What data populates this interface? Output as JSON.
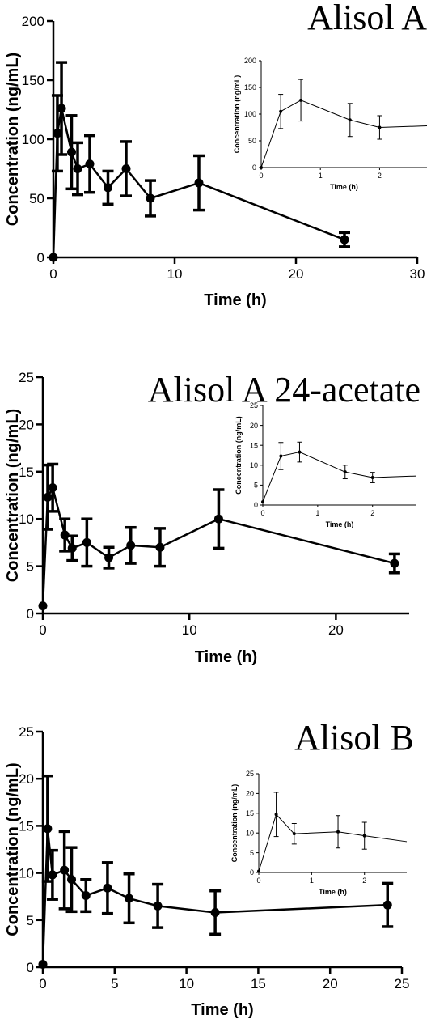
{
  "chart_data": [
    {
      "type": "line",
      "title": "Alisol A",
      "xlabel": "Time (h)",
      "ylabel": "Concentration (ng/mL)",
      "xlim": [
        0,
        30
      ],
      "ylim": [
        0,
        200
      ],
      "xticks": [
        0,
        10,
        20,
        30
      ],
      "yticks": [
        0,
        50,
        100,
        150,
        200
      ],
      "series": [
        {
          "x": [
            0,
            0.33,
            0.67,
            1.5,
            2,
            3,
            4.5,
            6,
            8,
            12,
            24
          ],
          "y": [
            0,
            105,
            126,
            89,
            75,
            79,
            59,
            75,
            50,
            63,
            15
          ],
          "err": [
            0,
            32,
            39,
            31,
            22,
            24,
            14,
            23,
            15,
            23,
            6
          ]
        }
      ],
      "inset": {
        "xlabel": "Time (h)",
        "ylabel": "Concentration (ng/mL)",
        "xlim": [
          0,
          2.8
        ],
        "ylim": [
          0,
          200
        ],
        "xticks": [
          0,
          1,
          2
        ],
        "yticks": [
          0,
          50,
          100,
          150,
          200
        ],
        "series": [
          {
            "x": [
              0,
              0.33,
              0.67,
              1.5,
              2,
              2.8
            ],
            "y": [
              0,
              105,
              126,
              89,
              75,
              78
            ],
            "err": [
              0,
              32,
              39,
              31,
              22,
              null
            ]
          }
        ]
      }
    },
    {
      "type": "line",
      "title": "Alisol A 24-acetate",
      "xlabel": "Time (h)",
      "ylabel": "Concentration (ng/mL)",
      "xlim": [
        0,
        25
      ],
      "ylim": [
        0,
        25
      ],
      "xticks": [
        0,
        10,
        20
      ],
      "yticks": [
        0,
        5,
        10,
        15,
        20,
        25
      ],
      "series": [
        {
          "x": [
            0,
            0.33,
            0.67,
            1.5,
            2,
            3,
            4.5,
            6,
            8,
            12,
            24
          ],
          "y": [
            0.8,
            12.3,
            13.3,
            8.3,
            6.9,
            7.5,
            5.9,
            7.2,
            7.0,
            10.0,
            5.3
          ],
          "err": [
            0,
            3.4,
            2.5,
            1.7,
            1.3,
            2.5,
            1.1,
            1.9,
            2.0,
            3.1,
            1.0
          ]
        }
      ],
      "inset": {
        "xlabel": "Time (h)",
        "ylabel": "Concentration (ng/mL)",
        "xlim": [
          0,
          2.8
        ],
        "ylim": [
          0,
          25
        ],
        "xticks": [
          0,
          1,
          2
        ],
        "yticks": [
          0,
          5,
          10,
          15,
          20,
          25
        ],
        "series": [
          {
            "x": [
              0,
              0.33,
              0.67,
              1.5,
              2,
              2.8
            ],
            "y": [
              0.8,
              12.3,
              13.3,
              8.3,
              6.9,
              7.3
            ],
            "err": [
              0,
              3.4,
              2.5,
              1.7,
              1.3,
              null
            ]
          }
        ]
      }
    },
    {
      "type": "line",
      "title": "Alisol B",
      "xlabel": "Time (h)",
      "ylabel": "Concentration (ng/mL)",
      "xlim": [
        0,
        25
      ],
      "ylim": [
        0,
        25
      ],
      "xticks": [
        0,
        5,
        10,
        15,
        20,
        25
      ],
      "yticks": [
        0,
        5,
        10,
        15,
        20,
        25
      ],
      "series": [
        {
          "x": [
            0,
            0.33,
            0.67,
            1.5,
            2,
            3,
            4.5,
            6,
            8,
            12,
            24
          ],
          "y": [
            0.3,
            14.7,
            9.8,
            10.3,
            9.3,
            7.6,
            8.4,
            7.3,
            6.5,
            5.8,
            6.6
          ],
          "err": [
            0,
            5.6,
            2.6,
            4.1,
            3.4,
            1.7,
            2.7,
            2.6,
            2.3,
            2.3,
            2.3
          ]
        }
      ],
      "inset": {
        "xlabel": "Time (h)",
        "ylabel": "Concentration (ng/mL)",
        "xlim": [
          0,
          2.8
        ],
        "ylim": [
          0,
          25
        ],
        "xticks": [
          0,
          1,
          2
        ],
        "yticks": [
          0,
          5,
          10,
          15,
          20,
          25
        ],
        "series": [
          {
            "x": [
              0,
              0.33,
              0.67,
              1.5,
              2,
              2.8
            ],
            "y": [
              0.3,
              14.7,
              9.8,
              10.3,
              9.3,
              7.8
            ],
            "err": [
              0,
              5.6,
              2.6,
              4.1,
              3.4,
              null
            ]
          }
        ]
      }
    }
  ]
}
